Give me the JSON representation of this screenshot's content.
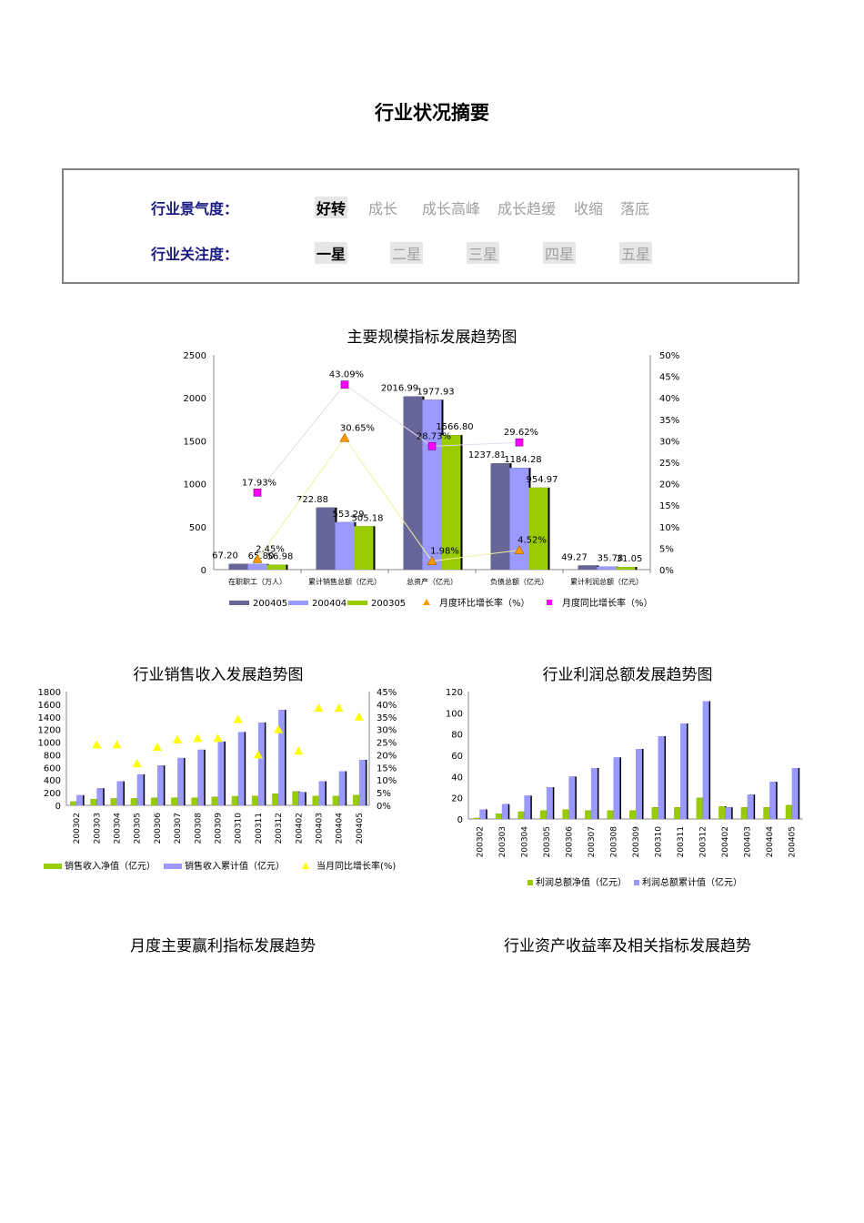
{
  "page": {
    "title": "行业状况摘要",
    "prosperity": {
      "label": "行业景气度：",
      "options": [
        "好转",
        "成长",
        "成长高峰",
        "成长趋缓",
        "收缩",
        "落底"
      ],
      "selected": "好转"
    },
    "attention": {
      "label": "行业关注度：",
      "options": [
        "一星",
        "二星",
        "三星",
        "四星",
        "五星"
      ],
      "selected": "一星"
    },
    "section_titles": {
      "monthly_profit": "月度主要赢利指标发展趋势",
      "asset_return": "行业资产收益率及相关指标发展趋势"
    },
    "colors": {
      "series_dark": "#666699",
      "series_light": "#9999ff",
      "series_green": "#99cc00",
      "triangle_orange": "#ff9900",
      "square_magenta": "#ff00ff",
      "triangle_yellow": "#ffff00",
      "title_navy": "#1a1a80"
    }
  },
  "chart_data": [
    {
      "type": "bar",
      "title": "主要规模指标发展趋势图",
      "categories": [
        "在职职工（万人）",
        "累计销售总额（亿元）",
        "总资产（亿元）",
        "负债总额（亿元）",
        "累计利润总额（亿元）"
      ],
      "series": [
        {
          "name": "200405",
          "values": [
            67.2,
            722.88,
            2016.99,
            1237.81,
            49.27
          ]
        },
        {
          "name": "200404",
          "values": [
            65.8,
            553.29,
            1977.93,
            1184.28,
            35.78
          ]
        },
        {
          "name": "200305",
          "values": [
            56.98,
            505.18,
            1566.8,
            954.97,
            31.05
          ]
        }
      ],
      "line_series": [
        {
          "name": "月度环比增长率（%）",
          "marker": "triangle",
          "values": [
            2.45,
            30.65,
            1.98,
            4.52,
            null
          ]
        },
        {
          "name": "月度同比增长率（%）",
          "marker": "square",
          "values": [
            17.93,
            43.09,
            28.73,
            29.62,
            null
          ]
        }
      ],
      "ylim": [
        0,
        2500
      ],
      "yticks": [
        0,
        500,
        1000,
        1500,
        2000,
        2500
      ],
      "y2lim": [
        0,
        50
      ],
      "y2ticks": [
        "0%",
        "5%",
        "10%",
        "15%",
        "20%",
        "25%",
        "30%",
        "35%",
        "40%",
        "45%",
        "50%"
      ],
      "bar_labels": [
        "67.20",
        "65.80",
        "56.98",
        "722.88",
        "553.29",
        "505.18",
        "2016.99",
        "1977.93",
        "1566.80",
        "1237.81",
        "1184.28",
        "954.97",
        "49.27",
        "35.78",
        "31.05"
      ],
      "point_labels": [
        "2.45%",
        "30.65%",
        "1.98%",
        "4.52%",
        "17.93%",
        "43.09%",
        "28.73%",
        "29.62%"
      ],
      "legend_position": "bottom"
    },
    {
      "type": "bar",
      "title": "行业销售收入发展趋势图",
      "categories": [
        "200302",
        "200303",
        "200304",
        "200305",
        "200306",
        "200307",
        "200308",
        "200309",
        "200310",
        "200311",
        "200312",
        "200402",
        "200403",
        "200404",
        "200405"
      ],
      "series": [
        {
          "name": "销售收入净值（亿元）",
          "values": [
            60,
            100,
            110,
            110,
            120,
            120,
            120,
            135,
            145,
            150,
            185,
            220,
            150,
            150,
            165
          ]
        },
        {
          "name": "销售收入累计值（亿元）",
          "values": [
            160,
            270,
            380,
            490,
            630,
            750,
            880,
            1010,
            1160,
            1310,
            1510,
            210,
            380,
            540,
            720
          ]
        }
      ],
      "line_series": [
        {
          "name": "当月同比增长率(%)",
          "marker": "triangle",
          "values": [
            null,
            24,
            24,
            16.5,
            23,
            26,
            26.5,
            26.5,
            34,
            20,
            30,
            21.5,
            38.5,
            38.5,
            35
          ]
        }
      ],
      "ylim": [
        0,
        1800
      ],
      "yticks": [
        0,
        200,
        400,
        600,
        800,
        1000,
        1200,
        1400,
        1600,
        1800
      ],
      "y2lim": [
        0,
        45
      ],
      "y2ticks": [
        "0%",
        "5%",
        "10%",
        "15%",
        "20%",
        "25%",
        "30%",
        "35%",
        "40%",
        "45%"
      ],
      "legend_position": "bottom"
    },
    {
      "type": "bar",
      "title": "行业利润总额发展趋势图",
      "categories": [
        "200302",
        "200303",
        "200304",
        "200305",
        "200306",
        "200307",
        "200308",
        "200309",
        "200310",
        "200311",
        "200312",
        "200402",
        "200403",
        "200404",
        "200405"
      ],
      "series": [
        {
          "name": "利润总额净值（亿元）",
          "values": [
            1,
            5,
            7,
            8,
            9,
            8,
            8,
            8,
            11,
            11,
            20,
            12,
            11,
            11,
            13
          ]
        },
        {
          "name": "利润总额累计值（亿元）",
          "values": [
            9,
            14,
            22,
            30,
            40,
            48,
            58,
            66,
            78,
            90,
            111,
            11,
            23,
            35,
            48
          ]
        }
      ],
      "ylim": [
        0,
        120
      ],
      "yticks": [
        0,
        20,
        40,
        60,
        80,
        100,
        120
      ],
      "legend_position": "bottom"
    }
  ]
}
